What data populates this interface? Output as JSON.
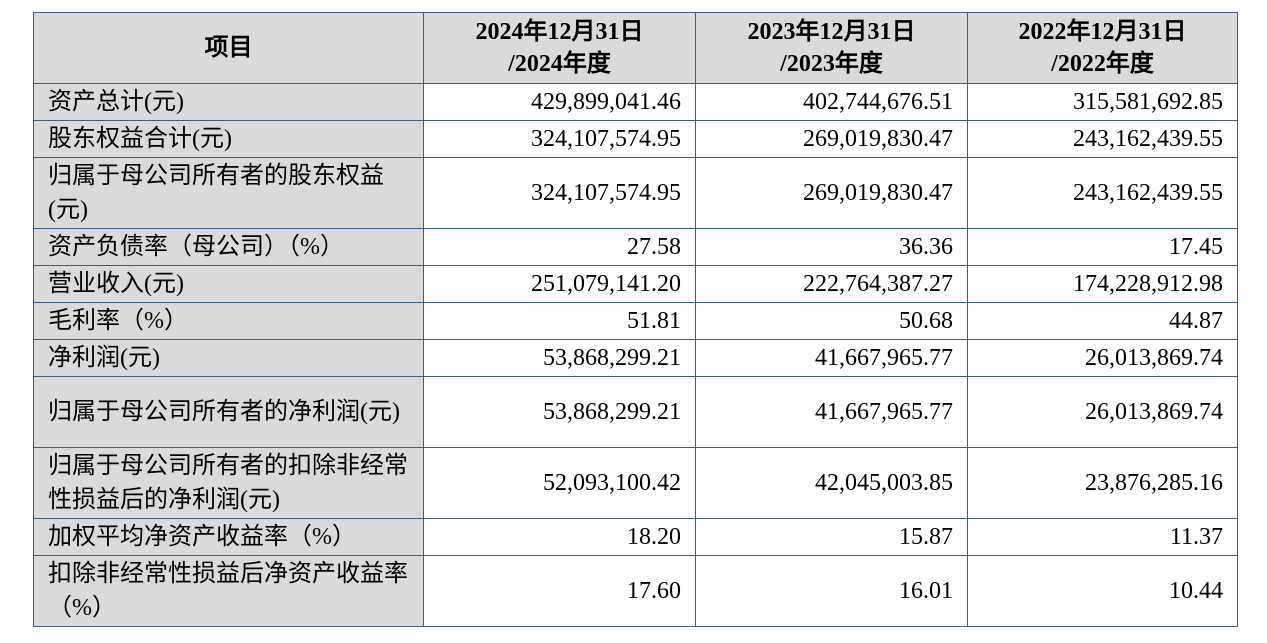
{
  "header": {
    "item": "项目",
    "periods": [
      {
        "line1": "2024年12月31日",
        "line2": "/2024年度"
      },
      {
        "line1": "2023年12月31日",
        "line2": "/2023年度"
      },
      {
        "line1": "2022年12月31日",
        "line2": "/2022年度"
      }
    ]
  },
  "rows": [
    {
      "label": "资产总计(元)",
      "values": [
        "429,899,041.46",
        "402,744,676.51",
        "315,581,692.85"
      ]
    },
    {
      "label": "股东权益合计(元)",
      "values": [
        "324,107,574.95",
        "269,019,830.47",
        "243,162,439.55"
      ]
    },
    {
      "label": "归属于母公司所有者的股东权益(元)",
      "values": [
        "324,107,574.95",
        "269,019,830.47",
        "243,162,439.55"
      ]
    },
    {
      "label": "资产负债率（母公司）（%）",
      "values": [
        "27.58",
        "36.36",
        "17.45"
      ]
    },
    {
      "label": "营业收入(元)",
      "values": [
        "251,079,141.20",
        "222,764,387.27",
        "174,228,912.98"
      ]
    },
    {
      "label": "毛利率（%）",
      "values": [
        "51.81",
        "50.68",
        "44.87"
      ]
    },
    {
      "label": "净利润(元)",
      "values": [
        "53,868,299.21",
        "41,667,965.77",
        "26,013,869.74"
      ]
    },
    {
      "label": "归属于母公司所有者的净利润(元)",
      "values": [
        "53,868,299.21",
        "41,667,965.77",
        "26,013,869.74"
      ]
    },
    {
      "label": "归属于母公司所有者的扣除非经常性损益后的净利润(元)",
      "values": [
        "52,093,100.42",
        "42,045,003.85",
        "23,876,285.16"
      ]
    },
    {
      "label": "加权平均净资产收益率（%）",
      "values": [
        "18.20",
        "15.87",
        "11.37"
      ]
    },
    {
      "label": "扣除非经常性损益后净资产收益率（%）",
      "values": [
        "17.60",
        "16.01",
        "10.44"
      ]
    }
  ]
}
